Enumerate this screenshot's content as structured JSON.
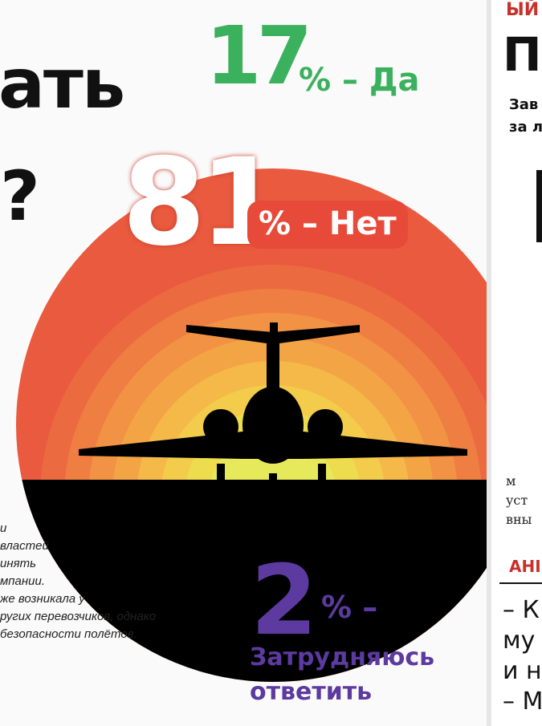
{
  "headline": {
    "fragment": "ать",
    "question_mark": "?"
  },
  "results": {
    "yes": {
      "percent": "17",
      "label": "% – Да",
      "color": "#3cb15d"
    },
    "no": {
      "percent": "81",
      "label": "% – Нет",
      "color": "#e84a3a"
    },
    "unsure": {
      "percent": "2",
      "label": "% –",
      "label_line1": "Затрудняюсь",
      "label_line2": "ответить",
      "color": "#5c3aa0"
    }
  },
  "chart_data": {
    "type": "pie",
    "categories": [
      "Да",
      "Нет",
      "Затрудняюсь ответить"
    ],
    "values": [
      17,
      81,
      2
    ],
    "title": ""
  },
  "note_lines": [
    "и",
    "властей",
    "инять",
    "мпании.",
    "же возникала у",
    "ругих перевозчиков, однако",
    "безопасности полётов."
  ],
  "right_column": {
    "top_label": "ЫЙ",
    "title": "П",
    "subtitle_line1": "Зав",
    "subtitle_line2": "за л",
    "body_lines": [
      "м",
      "уст",
      "вны"
    ],
    "section_label": "АНІ",
    "quote_lines": [
      "– К",
      "му",
      "и н",
      "– М"
    ]
  },
  "colors": {
    "sun_rings": [
      "#e95a3f",
      "#ec6a40",
      "#ef7e42",
      "#f29244",
      "#f3a546",
      "#f4b948",
      "#f2cc4a",
      "#eddd4e",
      "#e6e95a"
    ],
    "ground": "#000000",
    "plane": "#000000"
  }
}
